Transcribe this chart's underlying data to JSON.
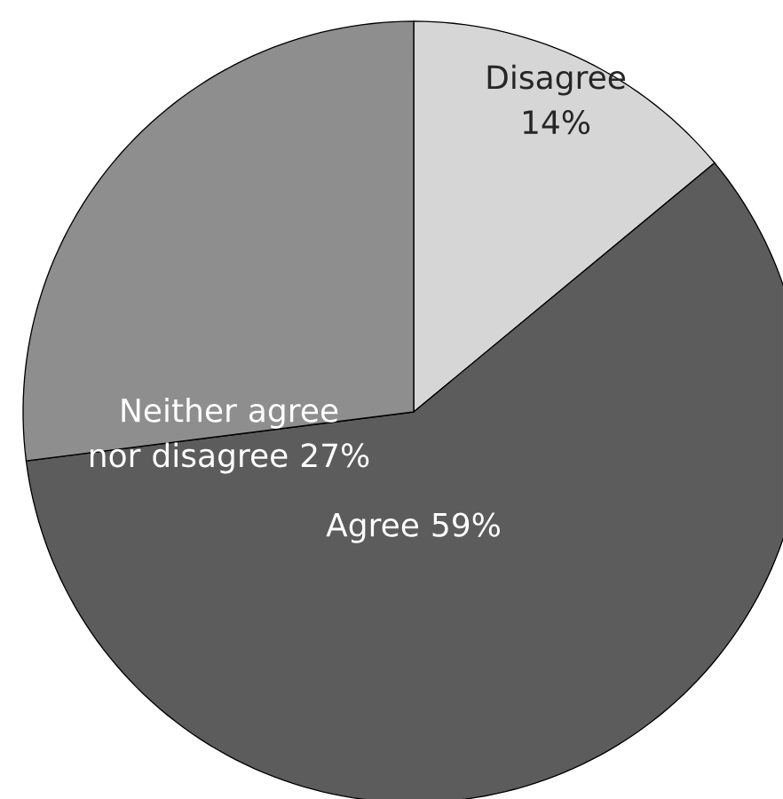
{
  "chart_data": {
    "type": "pie",
    "categories": [
      "Disagree",
      "Agree",
      "Neither agree nor disagree"
    ],
    "values": [
      14,
      59,
      27
    ],
    "value_labels": [
      "14%",
      "59%",
      "27%"
    ],
    "colors": [
      "#d6d6d6",
      "#5c5c5c",
      "#8e8e8e"
    ]
  }
}
